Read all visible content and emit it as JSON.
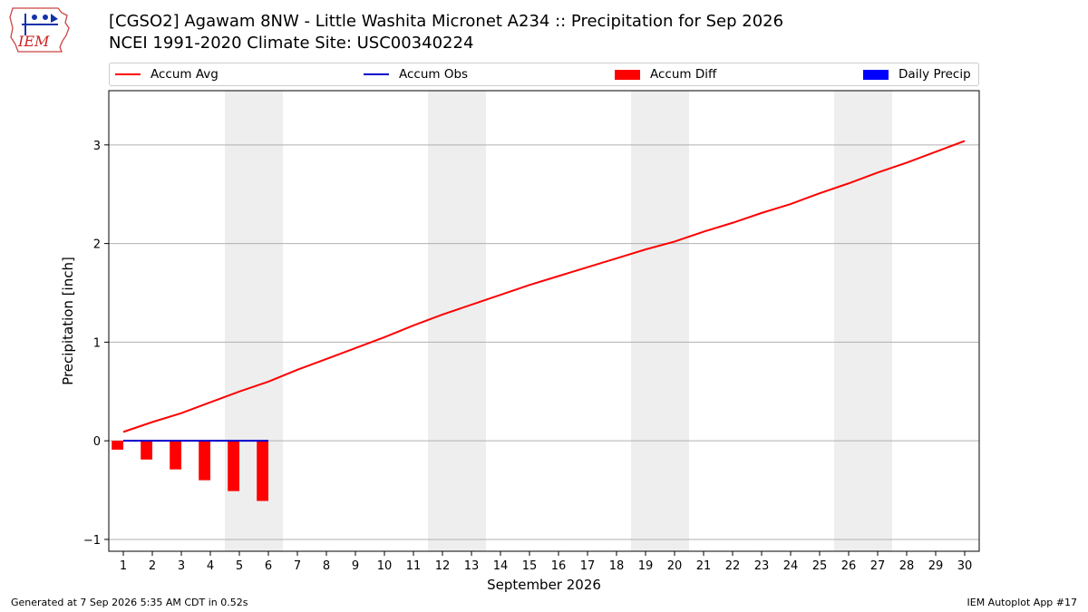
{
  "header": {
    "logo_text": "IEM",
    "title": "[CGSO2] Agawam 8NW - Little Washita Micronet A234 :: Precipitation for Sep 2026",
    "subtitle": "NCEI 1991-2020 Climate Site: USC00340224"
  },
  "colors": {
    "accum_avg": "#ff0000",
    "accum_obs": "#0000cc",
    "accum_diff": "#ff0000",
    "daily_precip": "#0000ff",
    "weekend_shade": "#eeeeee"
  },
  "legend": [
    {
      "label": "Accum Avg",
      "kind": "line",
      "color": "#ff0000"
    },
    {
      "label": "Accum Obs",
      "kind": "line",
      "color": "#0000cc"
    },
    {
      "label": "Accum Diff",
      "kind": "box",
      "color": "#ff0000"
    },
    {
      "label": "Daily Precip",
      "kind": "box",
      "color": "#0000ff"
    }
  ],
  "chart_data": {
    "type": "line",
    "xlabel": "September 2026",
    "ylabel": "Precipitation [inch]",
    "xlim": [
      0.5,
      30.5
    ],
    "ylim": [
      -1.12,
      3.55
    ],
    "x_ticks": [
      1,
      2,
      3,
      4,
      5,
      6,
      7,
      8,
      9,
      10,
      11,
      12,
      13,
      14,
      15,
      16,
      17,
      18,
      19,
      20,
      21,
      22,
      23,
      24,
      25,
      26,
      27,
      28,
      29,
      30
    ],
    "y_ticks": [
      -1,
      0,
      1,
      2,
      3
    ],
    "grid": "y",
    "legend_position": "top",
    "shaded_weekend_ranges": [
      [
        4.5,
        6.5
      ],
      [
        11.5,
        13.5
      ],
      [
        18.5,
        20.5
      ],
      [
        25.5,
        27.5
      ]
    ],
    "series": [
      {
        "name": "Accum Avg",
        "type": "line",
        "x": [
          1,
          2,
          3,
          4,
          5,
          6,
          7,
          8,
          9,
          10,
          11,
          12,
          13,
          14,
          15,
          16,
          17,
          18,
          19,
          20,
          21,
          22,
          23,
          24,
          25,
          26,
          27,
          28,
          29,
          30
        ],
        "values": [
          0.09,
          0.19,
          0.28,
          0.39,
          0.5,
          0.6,
          0.72,
          0.83,
          0.94,
          1.05,
          1.17,
          1.28,
          1.38,
          1.48,
          1.58,
          1.67,
          1.76,
          1.85,
          1.94,
          2.02,
          2.12,
          2.21,
          2.31,
          2.4,
          2.51,
          2.61,
          2.72,
          2.82,
          2.93,
          3.04
        ]
      },
      {
        "name": "Accum Obs",
        "type": "line",
        "x": [
          1,
          2,
          3,
          4,
          5,
          6
        ],
        "values": [
          0,
          0,
          0,
          0,
          0,
          0
        ]
      },
      {
        "name": "Accum Diff",
        "type": "bar",
        "x": [
          1,
          2,
          3,
          4,
          5,
          6
        ],
        "values": [
          -0.09,
          -0.19,
          -0.29,
          -0.4,
          -0.51,
          -0.61
        ]
      },
      {
        "name": "Daily Precip",
        "type": "bar",
        "x": [
          1,
          2,
          3,
          4,
          5,
          6
        ],
        "values": [
          0,
          0,
          0,
          0,
          0,
          0
        ]
      }
    ]
  },
  "footer": {
    "generated": "Generated at 7 Sep 2026 5:35 AM CDT in 0.52s",
    "app": "IEM Autoplot App #17"
  }
}
